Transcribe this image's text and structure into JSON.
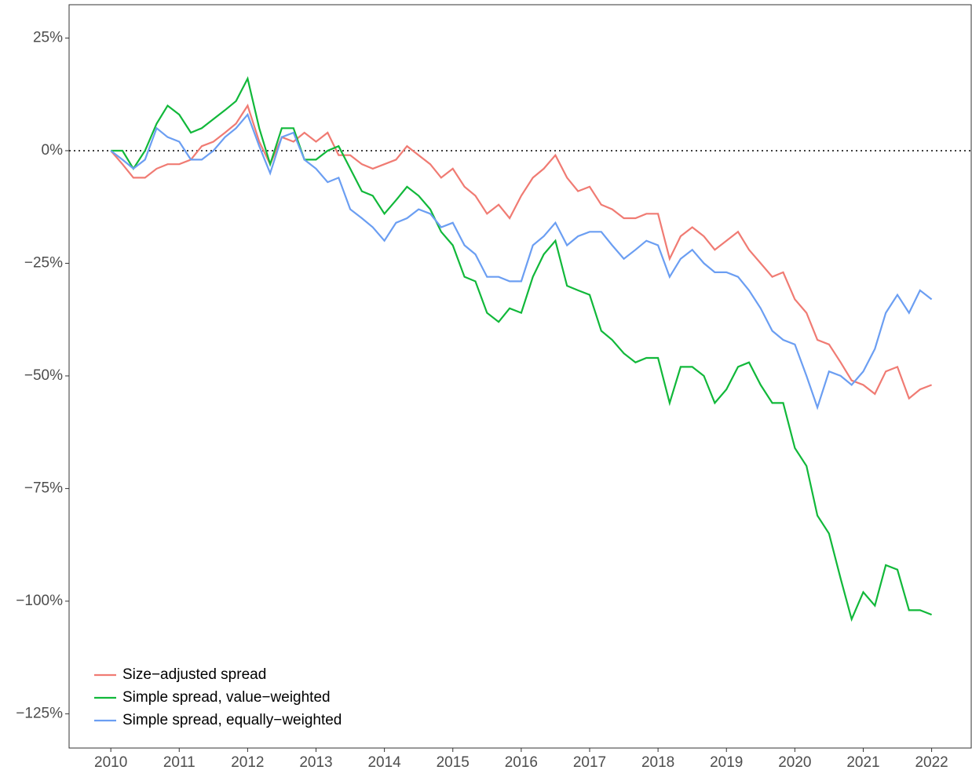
{
  "chart_data": {
    "type": "line",
    "x": [
      2010,
      2010.17,
      2010.33,
      2010.5,
      2010.67,
      2010.83,
      2011,
      2011.17,
      2011.33,
      2011.5,
      2011.67,
      2011.83,
      2012,
      2012.17,
      2012.33,
      2012.5,
      2012.67,
      2012.83,
      2013,
      2013.17,
      2013.33,
      2013.5,
      2013.67,
      2013.83,
      2014,
      2014.17,
      2014.33,
      2014.5,
      2014.67,
      2014.83,
      2015,
      2015.17,
      2015.33,
      2015.5,
      2015.67,
      2015.83,
      2016,
      2016.17,
      2016.33,
      2016.5,
      2016.67,
      2016.83,
      2017,
      2017.17,
      2017.33,
      2017.5,
      2017.67,
      2017.83,
      2018,
      2018.17,
      2018.33,
      2018.5,
      2018.67,
      2018.83,
      2019,
      2019.17,
      2019.33,
      2019.5,
      2019.67,
      2019.83,
      2020,
      2020.17,
      2020.33,
      2020.5,
      2020.67,
      2020.83,
      2021,
      2021.17,
      2021.33,
      2021.5,
      2021.67,
      2021.83,
      2022
    ],
    "series": [
      {
        "name": "Size−adjusted spread",
        "color": "#f07b73",
        "values": [
          0,
          -3,
          -6,
          -6,
          -4,
          -3,
          -3,
          -2,
          1,
          2,
          4,
          6,
          10,
          2,
          -3,
          3,
          2,
          4,
          2,
          4,
          -1,
          -1,
          -3,
          -4,
          -3,
          -2,
          1,
          -1,
          -3,
          -6,
          -4,
          -8,
          -10,
          -14,
          -12,
          -15,
          -10,
          -6,
          -4,
          -1,
          -6,
          -9,
          -8,
          -12,
          -13,
          -15,
          -15,
          -14,
          -14,
          -24,
          -19,
          -17,
          -19,
          -22,
          -20,
          -18,
          -22,
          -25,
          -28,
          -27,
          -33,
          -36,
          -42,
          -43,
          -47,
          -51,
          -52,
          -54,
          -49,
          -48,
          -55,
          -53,
          -52
        ]
      },
      {
        "name": "Simple spread, value−weighted",
        "color": "#11b83a",
        "values": [
          0,
          0,
          -4,
          0,
          6,
          10,
          8,
          4,
          5,
          7,
          9,
          11,
          16,
          5,
          -3,
          5,
          5,
          -2,
          -2,
          0,
          1,
          -4,
          -9,
          -10,
          -14,
          -11,
          -8,
          -10,
          -13,
          -18,
          -21,
          -28,
          -29,
          -36,
          -38,
          -35,
          -36,
          -28,
          -23,
          -20,
          -30,
          -31,
          -32,
          -40,
          -42,
          -45,
          -47,
          -46,
          -46,
          -56,
          -48,
          -48,
          -50,
          -56,
          -53,
          -48,
          -47,
          -52,
          -56,
          -56,
          -66,
          -70,
          -81,
          -85,
          -95,
          -104,
          -98,
          -101,
          -92,
          -93,
          -102,
          -102,
          -103
        ]
      },
      {
        "name": "Simple spread, equally−weighted",
        "color": "#6b9ef2",
        "values": [
          0,
          -2,
          -4,
          -2,
          5,
          3,
          2,
          -2,
          -2,
          0,
          3,
          5,
          8,
          1,
          -5,
          3,
          4,
          -2,
          -4,
          -7,
          -6,
          -13,
          -15,
          -17,
          -20,
          -16,
          -15,
          -13,
          -14,
          -17,
          -16,
          -21,
          -23,
          -28,
          -28,
          -29,
          -29,
          -21,
          -19,
          -16,
          -21,
          -19,
          -18,
          -18,
          -21,
          -24,
          -22,
          -20,
          -21,
          -28,
          -24,
          -22,
          -25,
          -27,
          -27,
          -28,
          -31,
          -35,
          -40,
          -42,
          -43,
          -50,
          -57,
          -49,
          -50,
          -52,
          -49,
          -44,
          -36,
          -32,
          -36,
          -31,
          -33
        ]
      }
    ],
    "xlim": [
      2009.39,
      2022.59
    ],
    "ylim": [
      -132.6,
      32.4
    ],
    "xticks": [
      2010,
      2011,
      2012,
      2013,
      2014,
      2015,
      2016,
      2017,
      2018,
      2019,
      2020,
      2021,
      2022
    ],
    "yticks": [
      {
        "value": 25,
        "label": "25%"
      },
      {
        "value": 0,
        "label": "0%"
      },
      {
        "value": -25,
        "label": "−25%"
      },
      {
        "value": -50,
        "label": "−50%"
      },
      {
        "value": -75,
        "label": "−75%"
      },
      {
        "value": -100,
        "label": "−100%"
      },
      {
        "value": -125,
        "label": "−125%"
      }
    ],
    "reference_line": 0,
    "legend": "bottom-left"
  }
}
